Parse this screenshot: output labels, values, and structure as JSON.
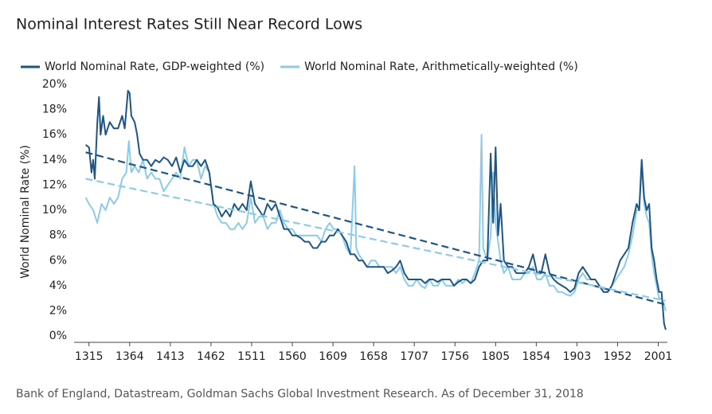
{
  "chart_data": {
    "type": "line",
    "title": "Nominal Interest Rates Still Near Record Lows",
    "y_label": "World Nominal Rate (%)",
    "source": "Bank of England, Datastream, Goldman Sachs Global Investment Research. As of December 31, 2018",
    "xlim": [
      1297,
      2012
    ],
    "xticks": [
      1315,
      1364,
      1413,
      1462,
      1511,
      1560,
      1609,
      1658,
      1707,
      1756,
      1805,
      1854,
      1903,
      1952,
      2001
    ],
    "ylim": [
      -0.5,
      20
    ],
    "yticks": [
      {
        "value": 0,
        "label": "0%"
      },
      {
        "value": 2,
        "label": "2%"
      },
      {
        "value": 4,
        "label": "4%"
      },
      {
        "value": 6,
        "label": "6%"
      },
      {
        "value": 8,
        "label": "8%"
      },
      {
        "value": 10,
        "label": "10%"
      },
      {
        "value": 12,
        "label": "12%"
      },
      {
        "value": 14,
        "label": "14%"
      },
      {
        "value": 16,
        "label": "16%"
      },
      {
        "value": 18,
        "label": "18%"
      },
      {
        "value": 20,
        "label": "20%"
      }
    ],
    "series": [
      {
        "name": "World Nominal Rate, GDP-weighted (%)",
        "color": "#1f5585",
        "x": [
          1311,
          1315,
          1318,
          1320,
          1322,
          1325,
          1327,
          1329,
          1332,
          1335,
          1340,
          1345,
          1350,
          1355,
          1358,
          1362,
          1364,
          1366,
          1370,
          1373,
          1376,
          1380,
          1385,
          1390,
          1395,
          1400,
          1405,
          1410,
          1415,
          1420,
          1425,
          1430,
          1435,
          1440,
          1445,
          1450,
          1455,
          1460,
          1465,
          1470,
          1475,
          1480,
          1485,
          1490,
          1495,
          1500,
          1505,
          1510,
          1515,
          1520,
          1525,
          1530,
          1535,
          1540,
          1545,
          1550,
          1555,
          1560,
          1565,
          1570,
          1575,
          1580,
          1585,
          1590,
          1595,
          1600,
          1605,
          1610,
          1615,
          1620,
          1625,
          1630,
          1635,
          1640,
          1645,
          1650,
          1655,
          1660,
          1665,
          1670,
          1675,
          1680,
          1685,
          1690,
          1695,
          1700,
          1705,
          1710,
          1715,
          1720,
          1725,
          1730,
          1735,
          1740,
          1745,
          1750,
          1755,
          1760,
          1765,
          1770,
          1775,
          1780,
          1785,
          1790,
          1795,
          1799,
          1802,
          1805,
          1808,
          1811,
          1815,
          1820,
          1825,
          1830,
          1835,
          1840,
          1845,
          1850,
          1855,
          1860,
          1865,
          1870,
          1875,
          1880,
          1885,
          1890,
          1895,
          1900,
          1905,
          1910,
          1915,
          1920,
          1925,
          1930,
          1935,
          1940,
          1945,
          1950,
          1955,
          1960,
          1965,
          1970,
          1975,
          1978,
          1981,
          1984,
          1987,
          1990,
          1993,
          1996,
          1999,
          2002,
          2005,
          2008,
          2010
        ],
        "values": [
          15.2,
          15,
          13,
          14,
          12.5,
          17,
          19,
          16,
          17.5,
          16,
          17,
          16.5,
          16.5,
          17.5,
          16.5,
          19.5,
          19.3,
          17.5,
          17,
          16,
          14.5,
          14,
          14,
          13.5,
          14,
          13.8,
          14.2,
          14,
          13.5,
          14.2,
          13,
          14,
          13.5,
          13.5,
          14,
          13.5,
          14,
          13,
          10.5,
          10.2,
          9.5,
          10,
          9.5,
          10.5,
          10,
          10.5,
          10,
          12.3,
          10.5,
          10,
          9.5,
          10.5,
          10,
          10.5,
          9.5,
          8.5,
          8.5,
          8,
          8,
          7.8,
          7.5,
          7.5,
          7,
          7,
          7.5,
          7.5,
          8,
          8,
          8.5,
          8,
          7.5,
          6.5,
          6.5,
          6,
          6,
          5.5,
          5.5,
          5.5,
          5.5,
          5.5,
          5,
          5.2,
          5.5,
          6,
          5,
          4.5,
          4.5,
          4.5,
          4.5,
          4.2,
          4.5,
          4.5,
          4.3,
          4.5,
          4.5,
          4.5,
          4,
          4.3,
          4.5,
          4.5,
          4.2,
          4.5,
          5.5,
          6,
          6,
          14.5,
          9,
          15,
          8,
          10.5,
          6,
          5.5,
          5.5,
          5,
          5,
          5,
          5.5,
          6.5,
          5,
          5,
          6.5,
          5,
          4.5,
          4.2,
          4,
          3.8,
          3.5,
          3.8,
          5,
          5.5,
          5,
          4.5,
          4.5,
          4,
          3.5,
          3.5,
          4,
          5,
          6,
          6.5,
          7,
          9,
          10.5,
          10,
          14,
          11,
          10,
          10.5,
          7,
          6,
          4.5,
          3.5,
          3.5,
          1,
          0.5
        ]
      },
      {
        "name": "World Nominal Rate, Arithmetically-weighted (%)",
        "color": "#8ccbea",
        "x": [
          1311,
          1315,
          1320,
          1325,
          1330,
          1335,
          1340,
          1345,
          1350,
          1355,
          1360,
          1363,
          1366,
          1370,
          1375,
          1380,
          1385,
          1390,
          1395,
          1400,
          1405,
          1410,
          1415,
          1420,
          1425,
          1430,
          1435,
          1440,
          1445,
          1450,
          1455,
          1460,
          1465,
          1470,
          1475,
          1480,
          1485,
          1490,
          1495,
          1500,
          1505,
          1510,
          1515,
          1520,
          1525,
          1530,
          1535,
          1540,
          1545,
          1550,
          1555,
          1560,
          1565,
          1570,
          1575,
          1580,
          1585,
          1590,
          1595,
          1600,
          1605,
          1610,
          1615,
          1620,
          1625,
          1630,
          1635,
          1637,
          1640,
          1645,
          1650,
          1655,
          1660,
          1665,
          1670,
          1675,
          1680,
          1685,
          1690,
          1695,
          1700,
          1705,
          1710,
          1715,
          1720,
          1725,
          1730,
          1735,
          1740,
          1745,
          1750,
          1755,
          1760,
          1765,
          1770,
          1775,
          1780,
          1785,
          1788,
          1790,
          1795,
          1799,
          1802,
          1805,
          1808,
          1811,
          1815,
          1820,
          1825,
          1830,
          1835,
          1840,
          1845,
          1850,
          1855,
          1860,
          1865,
          1870,
          1875,
          1880,
          1885,
          1890,
          1895,
          1900,
          1905,
          1910,
          1915,
          1920,
          1925,
          1930,
          1935,
          1940,
          1945,
          1950,
          1955,
          1960,
          1965,
          1970,
          1975,
          1978,
          1981,
          1984,
          1987,
          1990,
          1993,
          1996,
          1999,
          2002,
          2005,
          2008,
          2010
        ],
        "values": [
          11,
          10.5,
          10,
          9,
          10.5,
          10,
          11,
          10.5,
          11,
          12.5,
          13,
          15.5,
          13,
          13.5,
          13,
          14,
          12.5,
          13,
          12.5,
          12.5,
          11.5,
          12,
          12.5,
          13,
          12.5,
          15,
          13.5,
          14,
          14,
          12.5,
          13.5,
          13,
          10.5,
          9.5,
          9,
          9,
          8.5,
          8.5,
          9,
          8.5,
          9,
          11,
          9,
          9.5,
          9.5,
          8.5,
          9,
          9,
          10,
          9,
          8.5,
          8.5,
          8,
          8,
          8,
          8,
          8,
          8,
          7.5,
          8.5,
          9,
          8.5,
          8.5,
          8,
          7,
          6.5,
          13.5,
          7,
          6.5,
          6,
          5.5,
          6,
          6,
          5.5,
          5.5,
          5.5,
          5.5,
          5,
          5.5,
          4.5,
          4,
          4,
          4.5,
          4,
          3.8,
          4.5,
          4,
          4,
          4.5,
          4,
          4,
          4,
          4.5,
          4.2,
          4.5,
          4.2,
          5,
          6,
          16,
          7,
          6,
          8,
          13,
          9,
          7.5,
          6,
          5,
          5.5,
          4.5,
          4.5,
          4.5,
          5,
          5,
          5.5,
          4.5,
          4.5,
          5,
          4,
          4,
          3.5,
          3.5,
          3.3,
          3.2,
          3.5,
          4.5,
          5,
          4.5,
          4.5,
          4.5,
          4,
          3.5,
          3.5,
          4,
          4.5,
          5,
          5.5,
          6.5,
          8,
          10,
          10,
          13.5,
          10.5,
          9.5,
          9,
          6.5,
          5,
          4,
          3,
          3,
          2.5,
          2
        ]
      }
    ],
    "trend_lines": [
      {
        "color": "#1f5585",
        "x": [
          1311,
          2010
        ],
        "values": [
          14.6,
          2.5
        ]
      },
      {
        "color": "#8ccbea",
        "x": [
          1311,
          2010
        ],
        "values": [
          12.5,
          2.8
        ]
      }
    ]
  }
}
